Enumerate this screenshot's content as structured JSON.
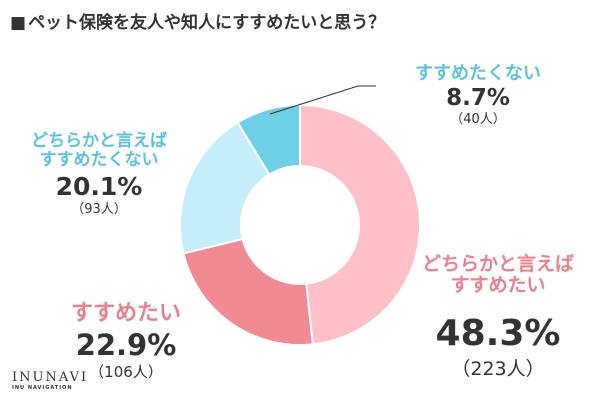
{
  "chart_data": {
    "type": "pie",
    "title": "ペット保険を友人や知人にすすめたいと思う？",
    "title_marker": "■",
    "slices": [
      {
        "label": "どちらかと言えばすすめたい",
        "label_lines": [
          "どちらかと言えば",
          "すすめたい"
        ],
        "value": 48.3,
        "value_text": "48.3%",
        "count": 223,
        "count_text": "（223人）",
        "color": "#ffc0c7",
        "label_color": "#ef7f8b"
      },
      {
        "label": "すすめたい",
        "label_lines": [
          "すすめたい"
        ],
        "value": 22.9,
        "value_text": "22.9%",
        "count": 106,
        "count_text": "（106人）",
        "color": "#f28a93",
        "label_color": "#ef7f8b"
      },
      {
        "label": "どちらかと言えばすすめたくない",
        "label_lines": [
          "どちらかと言えば",
          "すすめたくない"
        ],
        "value": 20.1,
        "value_text": "20.1%",
        "count": 93,
        "count_text": "（93人）",
        "color": "#c5effa",
        "label_color": "#5bc4dc"
      },
      {
        "label": "すすめたくない",
        "label_lines": [
          "すすめたくない"
        ],
        "value": 8.7,
        "value_text": "8.7%",
        "count": 40,
        "count_text": "（40人）",
        "color": "#6fcfe4",
        "label_color": "#5bc4dc"
      }
    ],
    "donut": true,
    "start": "top",
    "direction": "clockwise",
    "legend": "none"
  },
  "logo": {
    "main": "INUNAVI",
    "sub": "INU NAVIGATION"
  }
}
